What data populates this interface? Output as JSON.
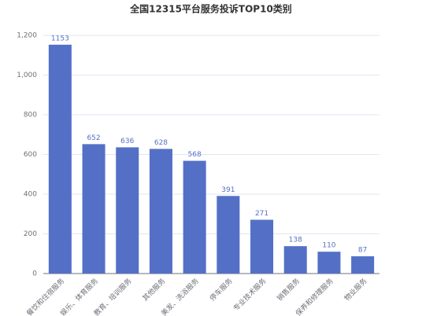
{
  "chart_data": {
    "type": "bar",
    "title": "全国12315平台服务投诉TOP10类别",
    "categories": [
      "餐饮和住宿服务",
      "娱乐、体育服务",
      "教育、培训服务",
      "其他服务",
      "美发、洗浴服务",
      "停车服务",
      "专业技术服务",
      "销售服务",
      "保养和修理服务",
      "物业服务"
    ],
    "values": [
      1153,
      652,
      636,
      628,
      568,
      391,
      271,
      138,
      110,
      87
    ],
    "color": "#5470c6",
    "ylim": [
      0,
      1200
    ],
    "yticks": [
      0,
      200,
      400,
      600,
      800,
      {
        "value": 1000,
        "label": "1,000"
      },
      {
        "value": 1200,
        "label": "1,200"
      }
    ],
    "grid": true
  }
}
